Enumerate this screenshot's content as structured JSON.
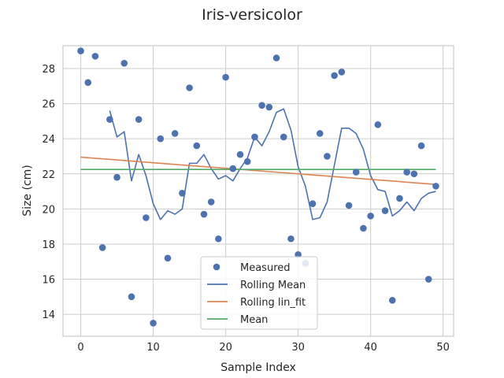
{
  "chart_data": {
    "type": "line",
    "title": "Iris-versicolor",
    "xlabel": "Sample Index",
    "ylabel": "Size (cm)",
    "xlim": [
      -2.45,
      51.45
    ],
    "ylim": [
      12.75,
      29.3
    ],
    "xticks": [
      0,
      10,
      20,
      30,
      40,
      50
    ],
    "yticks": [
      14,
      16,
      18,
      20,
      22,
      24,
      26,
      28
    ],
    "grid": true,
    "legend_position": "lower-center",
    "series": [
      {
        "name": "Measured",
        "kind": "scatter",
        "color": "#4c72b0",
        "x": [
          0,
          1,
          2,
          3,
          4,
          5,
          6,
          7,
          8,
          9,
          10,
          11,
          12,
          13,
          14,
          15,
          16,
          17,
          18,
          19,
          20,
          21,
          22,
          23,
          24,
          25,
          26,
          27,
          28,
          29,
          30,
          31,
          32,
          33,
          34,
          35,
          36,
          37,
          38,
          39,
          40,
          41,
          42,
          43,
          44,
          45,
          46,
          47,
          48,
          49
        ],
        "y": [
          29.0,
          27.2,
          28.7,
          17.8,
          25.1,
          21.8,
          28.3,
          15.0,
          25.1,
          19.5,
          13.5,
          24.0,
          17.2,
          24.3,
          20.9,
          26.9,
          23.6,
          19.7,
          20.4,
          18.3,
          27.5,
          22.3,
          23.1,
          22.7,
          24.1,
          25.9,
          25.8,
          28.6,
          24.1,
          18.3,
          17.4,
          16.9,
          20.3,
          24.3,
          23.0,
          27.6,
          27.8,
          20.2,
          22.1,
          18.9,
          19.6,
          24.8,
          19.9,
          14.8,
          20.6,
          22.1,
          22.0,
          23.6,
          16.0,
          21.3
        ]
      },
      {
        "name": "Rolling Mean",
        "kind": "line",
        "color": "#4c72b0",
        "x": [
          4,
          5,
          6,
          7,
          8,
          9,
          10,
          11,
          12,
          13,
          14,
          15,
          16,
          17,
          18,
          19,
          20,
          21,
          22,
          23,
          24,
          25,
          26,
          27,
          28,
          29,
          30,
          31,
          32,
          33,
          34,
          35,
          36,
          37,
          38,
          39,
          40,
          41,
          42,
          43,
          44,
          45,
          46,
          47,
          48,
          49
        ],
        "y": [
          25.6,
          24.1,
          24.4,
          21.6,
          23.1,
          21.9,
          20.3,
          19.4,
          19.9,
          19.7,
          20.0,
          22.6,
          22.6,
          23.1,
          22.3,
          21.7,
          21.9,
          21.6,
          22.3,
          22.9,
          24.1,
          23.6,
          24.4,
          25.5,
          25.7,
          24.5,
          22.4,
          21.3,
          19.4,
          19.5,
          20.4,
          22.5,
          24.6,
          24.6,
          24.3,
          23.4,
          21.9,
          21.1,
          21.0,
          19.6,
          19.9,
          20.4,
          19.9,
          20.6,
          20.9,
          21.0
        ]
      },
      {
        "name": "Rolling lin_fit",
        "kind": "line",
        "color": "#dd8452",
        "x": [
          0,
          49
        ],
        "y": [
          22.95,
          21.4
        ]
      },
      {
        "name": "Mean",
        "kind": "line",
        "color": "#55a868",
        "x": [
          0,
          49
        ],
        "y": [
          22.25,
          22.25
        ]
      }
    ]
  }
}
